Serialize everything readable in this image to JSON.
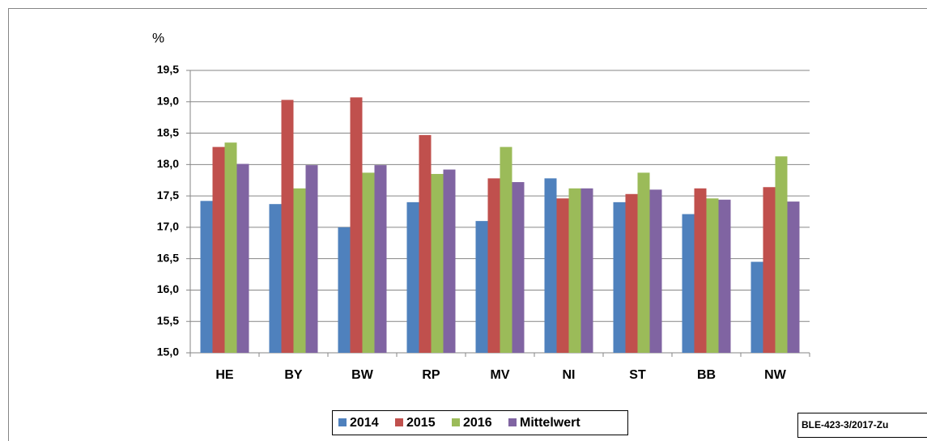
{
  "chart_data": {
    "type": "bar",
    "y_label": "%",
    "source": "BLE-423-3/2017-Zu",
    "categories": [
      "HE",
      "BY",
      "BW",
      "RP",
      "MV",
      "NI",
      "ST",
      "BB",
      "NW"
    ],
    "series": [
      {
        "name": "2014",
        "color": "#4f81bd",
        "values": [
          17.42,
          17.37,
          17.0,
          17.4,
          17.1,
          17.78,
          17.4,
          17.21,
          16.45
        ]
      },
      {
        "name": "2015",
        "color": "#c0504d",
        "values": [
          18.28,
          19.03,
          19.07,
          18.47,
          17.78,
          17.46,
          17.53,
          17.62,
          17.64
        ]
      },
      {
        "name": "2016",
        "color": "#9bbb59",
        "values": [
          18.35,
          17.62,
          17.87,
          17.85,
          18.28,
          17.62,
          17.87,
          17.46,
          18.13
        ]
      },
      {
        "name": "Mittelwert",
        "color": "#8064a2",
        "values": [
          18.01,
          17.99,
          17.99,
          17.92,
          17.72,
          17.62,
          17.6,
          17.44,
          17.41
        ]
      }
    ],
    "ylim": [
      15.0,
      19.5
    ],
    "yticks": [
      {
        "value": 15.0,
        "label": "15,0"
      },
      {
        "value": 15.5,
        "label": "15,5"
      },
      {
        "value": 16.0,
        "label": "16,0"
      },
      {
        "value": 16.5,
        "label": "16,5"
      },
      {
        "value": 17.0,
        "label": "17,0"
      },
      {
        "value": 17.5,
        "label": "17,5"
      },
      {
        "value": 18.0,
        "label": "18,0"
      },
      {
        "value": 18.5,
        "label": "18,5"
      },
      {
        "value": 19.0,
        "label": "19,0"
      },
      {
        "value": 19.5,
        "label": "19,5"
      }
    ],
    "grid": true,
    "legend": "bottom"
  }
}
